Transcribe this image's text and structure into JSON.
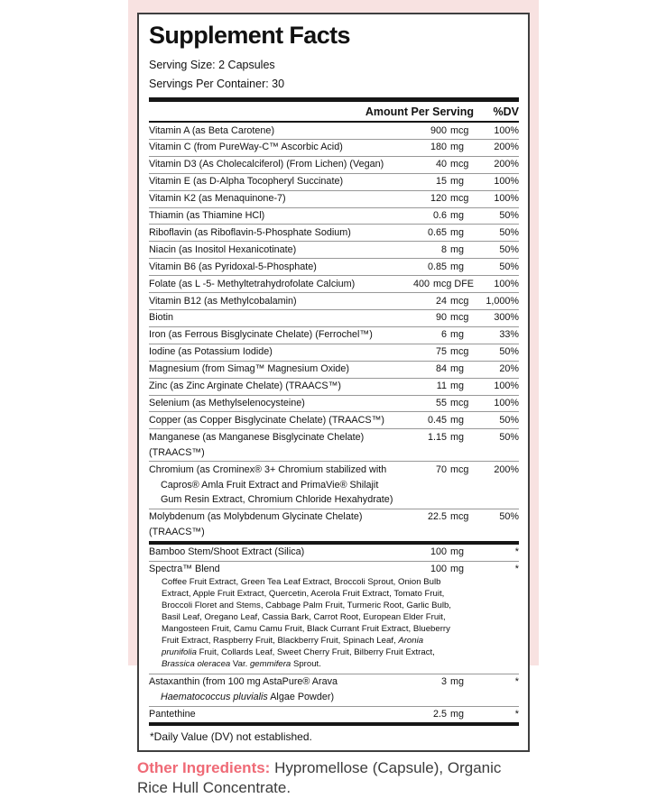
{
  "panel": {
    "title": "Supplement Facts",
    "serving_size": "Serving Size: 2 Capsules",
    "servings_per_container": "Servings Per Container: 30",
    "columns": {
      "amount": "Amount Per Serving",
      "dv": "%DV"
    },
    "rows": [
      {
        "name": "Vitamin A (as Beta Carotene)",
        "amount": "900",
        "unit": "mcg",
        "dv": "100%"
      },
      {
        "name": "Vitamin C (from PureWay-C™ Ascorbic Acid)",
        "amount": "180",
        "unit": "mg",
        "dv": "200%"
      },
      {
        "name": "Vitamin D3 (As Cholecalciferol) (From Lichen) (Vegan)",
        "amount": "40",
        "unit": "mcg",
        "dv": "200%"
      },
      {
        "name": "Vitamin E (as D-Alpha Tocopheryl Succinate)",
        "amount": "15",
        "unit": "mg",
        "dv": "100%"
      },
      {
        "name": "Vitamin K2 (as Menaquinone-7)",
        "amount": "120",
        "unit": "mcg",
        "dv": "100%"
      },
      {
        "name": "Thiamin (as Thiamine HCl)",
        "amount": "0.6",
        "unit": "mg",
        "dv": "50%"
      },
      {
        "name": "Riboflavin (as Riboflavin-5-Phosphate Sodium)",
        "amount": "0.65",
        "unit": "mg",
        "dv": "50%"
      },
      {
        "name": "Niacin (as Inositol Hexanicotinate)",
        "amount": "8",
        "unit": "mg",
        "dv": "50%"
      },
      {
        "name": "Vitamin B6 (as Pyridoxal-5-Phosphate)",
        "amount": "0.85",
        "unit": "mg",
        "dv": "50%"
      },
      {
        "name": "Folate (as L -5- Methyltetrahydrofolate Calcium)",
        "amount": "400",
        "unit": "mcg DFE",
        "dv": "100%"
      },
      {
        "name": "Vitamin B12 (as Methylcobalamin)",
        "amount": "24",
        "unit": "mcg",
        "dv": "1,000%"
      },
      {
        "name": "Biotin",
        "amount": "90",
        "unit": "mcg",
        "dv": "300%"
      },
      {
        "name": "Iron (as Ferrous Bisglycinate Chelate) (Ferrochel™)",
        "amount": "6",
        "unit": "mg",
        "dv": "33%"
      },
      {
        "name": "Iodine (as Potassium Iodide)",
        "amount": "75",
        "unit": "mcg",
        "dv": "50%"
      },
      {
        "name": "Magnesium (from Simag™ Magnesium Oxide)",
        "amount": "84",
        "unit": "mg",
        "dv": "20%"
      },
      {
        "name": "Zinc (as Zinc Arginate Chelate) (TRAACS™)",
        "amount": "11",
        "unit": "mg",
        "dv": "100%"
      },
      {
        "name": "Selenium (as Methylselenocysteine)",
        "amount": "55",
        "unit": "mcg",
        "dv": "100%"
      },
      {
        "name": "Copper (as Copper Bisglycinate Chelate) (TRAACS™)",
        "amount": "0.45",
        "unit": "mg",
        "dv": "50%"
      },
      {
        "name": "Manganese (as Manganese Bisglycinate Chelate) (TRAACS™)",
        "amount": "1.15",
        "unit": "mg",
        "dv": "50%"
      },
      {
        "name": "Chromium (as Crominex® 3+ Chromium stabilized with Capros® Amla Fruit Extract and PrimaVie® Shilajit Gum Resin Extract, Chromium Chloride Hexahydrate)",
        "amount": "70",
        "unit": "mcg",
        "dv": "200%",
        "hang": true
      },
      {
        "name": "Molybdenum (as Molybdenum Glycinate Chelate) (TRAACS™)",
        "amount": "22.5",
        "unit": "mcg",
        "dv": "50%",
        "bar_after": true
      },
      {
        "name": "Bamboo Stem/Shoot Extract (Silica)",
        "amount": "100",
        "unit": "mg",
        "dv": "*"
      },
      {
        "name": "Spectra™ Blend",
        "amount": "100",
        "unit": "mg",
        "dv": "*",
        "sub": [
          {
            "t": "Coffee Fruit Extract, Green Tea Leaf Extract, Broccoli Sprout, Onion Bulb Extract, Apple Fruit Extract, Quercetin, Acerola Fruit Extract, Tomato Fruit, Broccoli Floret and Stems, Cabbage Palm Fruit, Turmeric Root, Garlic Bulb, Basil Leaf, Oregano Leaf, Cassia Bark, Carrot Root, European Elder Fruit, Mangosteen Fruit, Camu Camu Fruit, Black Currant Fruit Extract, Blueberry Fruit Extract, Raspberry Fruit, Blackberry Fruit, Spinach Leaf, "
          },
          {
            "t": "Aronia prunifolia",
            "i": true
          },
          {
            "t": " Fruit, Collards Leaf, Sweet Cherry Fruit, Bilberry Fruit Extract, "
          },
          {
            "t": "Brassica oleracea",
            "i": true
          },
          {
            "t": " Var. "
          },
          {
            "t": "gemmifera",
            "i": true
          },
          {
            "t": " Sprout."
          }
        ]
      },
      {
        "name": [
          {
            "t": "Astaxanthin (from 100 mg AstaPure® Arava "
          },
          {
            "t": "Haematococcus pluvialis",
            "i": true
          },
          {
            "t": " Algae Powder)"
          }
        ],
        "amount": "3",
        "unit": "mg",
        "dv": "*",
        "hang": true
      },
      {
        "name": "Pantethine",
        "amount": "2.5",
        "unit": "mg",
        "dv": "*",
        "bar_after": true
      }
    ],
    "footnote": "*Daily Value (DV) not established."
  },
  "other_ingredients": {
    "label": "Other Ingredients:",
    "text": " Hypromellose (Capsule), Organic Rice Hull Concentrate."
  },
  "colors": {
    "background_band": "#F8E2E1",
    "accent_coral": "#EF6A76",
    "panel_border": "#3F3F3F",
    "text": "#121212"
  }
}
